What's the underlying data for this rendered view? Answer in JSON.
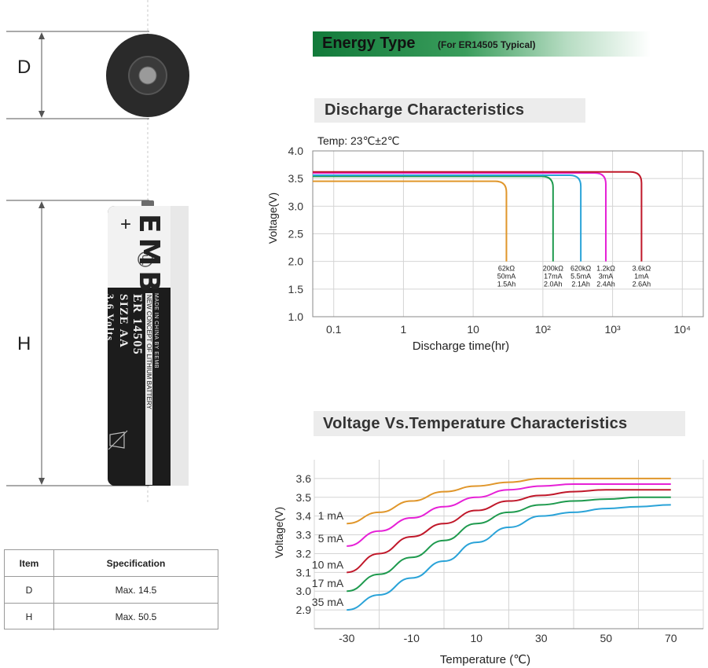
{
  "dimensions": {
    "d_label": "D",
    "h_label": "H"
  },
  "battery": {
    "brand_mark": "EMB",
    "plus_sign": "+",
    "model": "ER 14505",
    "size": "SIZE AA",
    "volts": "3.6 Volts",
    "made_in": "MADE IN CHINA BY EEMB",
    "slogan": "NEW CONCEPT OF LITHIUM BATTERY"
  },
  "spec_table": {
    "headers": [
      "Item",
      "Specification"
    ],
    "rows": [
      [
        "D",
        "Max. 14.5"
      ],
      [
        "H",
        "Max. 50.5"
      ]
    ]
  },
  "energy_type": {
    "title": "Energy Type",
    "subtitle": "(For ER14505 Typical)"
  },
  "discharge_section": {
    "title": "Discharge Characteristics",
    "temp_note": "Temp: 23℃±2℃"
  },
  "temperature_section": {
    "title": "Voltage Vs.Temperature Characteristics"
  },
  "colors": {
    "orange": "#e0962a",
    "green": "#1e9a4e",
    "blue": "#2aa3d8",
    "magenta": "#e620d6",
    "red": "#c0182a",
    "energy_green": "#127a3a",
    "section_bg": "#ececec",
    "grid": "#d4d4d4"
  },
  "chart_data": [
    {
      "type": "line",
      "title": "Discharge Characteristics",
      "xlabel": "Discharge time(hr)",
      "ylabel": "Voltage(V)",
      "x_scale": "log",
      "xlim": [
        0.05,
        20000
      ],
      "ylim": [
        1.0,
        4.0
      ],
      "x_ticks": [
        "0.1",
        "1",
        "10",
        "10²",
        "10³",
        "10⁴"
      ],
      "y_ticks": [
        "1.0",
        "1.5",
        "2.0",
        "2.5",
        "3.0",
        "3.5",
        "4.0"
      ],
      "grid": true,
      "series": [
        {
          "load": "62kΩ",
          "current": "50mA",
          "capacity": "1.5Ah",
          "color": "orange",
          "flat_voltage": 3.45,
          "end_hours": 30,
          "end_voltage": 2.0
        },
        {
          "load": "200kΩ",
          "current": "17mA",
          "capacity": "2.0Ah",
          "color": "green",
          "flat_voltage": 3.54,
          "end_hours": 140,
          "end_voltage": 2.0
        },
        {
          "load": "620kΩ",
          "current": "5.5mA",
          "capacity": "2.1Ah",
          "color": "blue",
          "flat_voltage": 3.56,
          "end_hours": 350,
          "end_voltage": 2.0
        },
        {
          "load": "1.2kΩ",
          "current": "3mA",
          "capacity": "2.4Ah",
          "color": "magenta",
          "flat_voltage": 3.6,
          "end_hours": 800,
          "end_voltage": 2.0
        },
        {
          "load": "3.6kΩ",
          "current": "1mA",
          "capacity": "2.6Ah",
          "color": "red",
          "flat_voltage": 3.62,
          "end_hours": 2600,
          "end_voltage": 2.0
        }
      ]
    },
    {
      "type": "line",
      "title": "Voltage Vs.Temperature Characteristics",
      "xlabel": "Temperature (℃)",
      "ylabel": "Voltage(V)",
      "xlim": [
        -40,
        80
      ],
      "ylim": [
        2.8,
        3.7
      ],
      "x_ticks": [
        "-30",
        "-10",
        "10",
        "30",
        "50",
        "70"
      ],
      "y_ticks": [
        "2.9",
        "3.0",
        "3.1",
        "3.2",
        "3.3",
        "3.4",
        "3.5",
        "3.6"
      ],
      "grid": true,
      "x": [
        -30,
        -20,
        -10,
        0,
        10,
        20,
        30,
        40,
        50,
        60,
        70
      ],
      "series": [
        {
          "name": "1 mA",
          "color": "orange",
          "values": [
            3.36,
            3.42,
            3.48,
            3.53,
            3.56,
            3.58,
            3.6,
            3.6,
            3.6,
            3.6,
            3.6
          ]
        },
        {
          "name": "5 mA",
          "color": "magenta",
          "values": [
            3.24,
            3.32,
            3.39,
            3.45,
            3.5,
            3.54,
            3.56,
            3.57,
            3.57,
            3.57,
            3.57
          ]
        },
        {
          "name": "10 mA",
          "color": "red",
          "values": [
            3.1,
            3.2,
            3.29,
            3.36,
            3.43,
            3.48,
            3.51,
            3.53,
            3.54,
            3.54,
            3.54
          ]
        },
        {
          "name": "17 mA",
          "color": "green",
          "values": [
            3.0,
            3.09,
            3.18,
            3.27,
            3.36,
            3.42,
            3.46,
            3.48,
            3.49,
            3.5,
            3.5
          ]
        },
        {
          "name": "35 mA",
          "color": "blue",
          "values": [
            2.9,
            2.98,
            3.07,
            3.16,
            3.26,
            3.34,
            3.4,
            3.42,
            3.44,
            3.45,
            3.46
          ]
        }
      ]
    }
  ]
}
